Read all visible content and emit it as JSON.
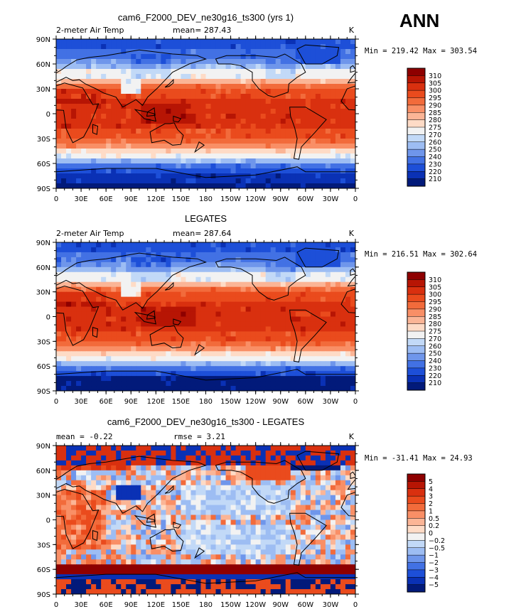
{
  "season_label": "ANN",
  "chart_data": [
    {
      "type": "heatmap",
      "title": "cam6_F2000_DEV_ne30g16_ts300 (yrs 1)",
      "variable_label": "2-meter Air Temp",
      "stat_text": "mean= 287.43",
      "units": "K",
      "minmax_text": "Min = 219.42 Max = 303.54",
      "lon_ticks": [
        "0",
        "30E",
        "60E",
        "90E",
        "120E",
        "150E",
        "180",
        "150W",
        "120W",
        "90W",
        "60W",
        "30W",
        "0"
      ],
      "lat_ticks": [
        "90N",
        "60N",
        "30N",
        "0",
        "30S",
        "60S",
        "90S"
      ],
      "lat_range": [
        -90,
        90
      ],
      "lon_range": [
        0,
        360
      ],
      "colorbar_levels": [
        "310",
        "305",
        "300",
        "295",
        "290",
        "285",
        "280",
        "275",
        "270",
        "260",
        "250",
        "240",
        "230",
        "220",
        "210"
      ],
      "colorbar_colors": [
        "#8e0000",
        "#b71504",
        "#d9300f",
        "#ea4b1d",
        "#f26b3b",
        "#f98f66",
        "#fbb596",
        "#fedbc6",
        "#f2f2f2",
        "#c2d9f7",
        "#9dbdf3",
        "#6f96eb",
        "#4271e4",
        "#1d4fd8",
        "#0a31b5",
        "#021a7a"
      ]
    },
    {
      "type": "heatmap",
      "title": "LEGATES",
      "variable_label": "2-meter Air Temp",
      "stat_text": "mean= 287.64",
      "units": "K",
      "minmax_text": "Min = 216.51 Max = 302.64",
      "lon_ticks": [
        "0",
        "30E",
        "60E",
        "90E",
        "120E",
        "150E",
        "180",
        "150W",
        "120W",
        "90W",
        "60W",
        "30W",
        "0"
      ],
      "lat_ticks": [
        "90N",
        "60N",
        "30N",
        "0",
        "30S",
        "60S",
        "90S"
      ],
      "lat_range": [
        -90,
        90
      ],
      "lon_range": [
        0,
        360
      ],
      "colorbar_levels": [
        "310",
        "305",
        "300",
        "295",
        "290",
        "285",
        "280",
        "275",
        "270",
        "260",
        "250",
        "240",
        "230",
        "220",
        "210"
      ],
      "colorbar_colors": [
        "#8e0000",
        "#b71504",
        "#d9300f",
        "#ea4b1d",
        "#f26b3b",
        "#f98f66",
        "#fbb596",
        "#fedbc6",
        "#f2f2f2",
        "#c2d9f7",
        "#9dbdf3",
        "#6f96eb",
        "#4271e4",
        "#1d4fd8",
        "#0a31b5",
        "#021a7a"
      ]
    },
    {
      "type": "heatmap",
      "title": "cam6_F2000_DEV_ne30g16_ts300 - LEGATES",
      "variable_label": "",
      "stat_text": "mean =   -0.22",
      "stat_text2": "rmse =    3.21",
      "units": "K",
      "minmax_text": "Min = -31.41 Max =  24.93",
      "lon_ticks": [
        "0",
        "30E",
        "60E",
        "90E",
        "120E",
        "150E",
        "180",
        "150W",
        "120W",
        "90W",
        "60W",
        "30W",
        "0"
      ],
      "lat_ticks": [
        "90N",
        "60N",
        "30N",
        "0",
        "30S",
        "60S",
        "90S"
      ],
      "lat_range": [
        -90,
        90
      ],
      "lon_range": [
        0,
        360
      ],
      "colorbar_levels": [
        "5",
        "4",
        "3",
        "2",
        "1",
        "0.5",
        "0.2",
        "0",
        "−0.2",
        "−0.5",
        "−1",
        "−2",
        "−3",
        "−4",
        "−5"
      ],
      "colorbar_colors": [
        "#8e0000",
        "#b71504",
        "#d9300f",
        "#ea4b1d",
        "#f26b3b",
        "#f98f66",
        "#fbb596",
        "#fedbc6",
        "#f2f2f2",
        "#c2d9f7",
        "#9dbdf3",
        "#6f96eb",
        "#4271e4",
        "#1d4fd8",
        "#0a31b5",
        "#021a7a"
      ]
    }
  ]
}
